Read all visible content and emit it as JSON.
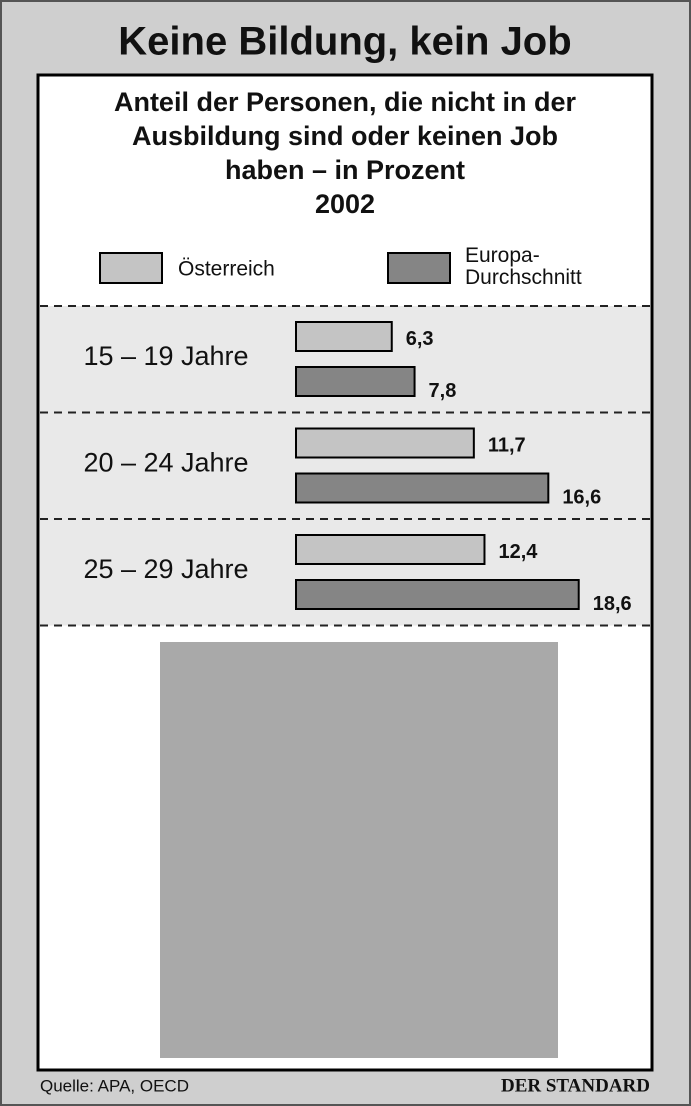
{
  "title": "Keine Bildung, kein Job",
  "chart_data": {
    "type": "bar",
    "subtitle": [
      "Anteil der Personen, die nicht in der",
      "Ausbildung sind oder keinen Job",
      "haben – in Prozent"
    ],
    "year": "2002",
    "categories": [
      "15 – 19 Jahre",
      "20 – 24 Jahre",
      "25 – 29 Jahre"
    ],
    "series": [
      {
        "name": "Österreich",
        "color": "#c4c4c4",
        "values": [
          6.3,
          11.7,
          12.4
        ],
        "value_labels": [
          "6,3",
          "11,7",
          "12,4"
        ]
      },
      {
        "name": "Europa-Durchschnitt",
        "color": "#858585",
        "values": [
          7.8,
          16.6,
          18.6
        ],
        "value_labels": [
          "7,8",
          "16,6",
          "18,6"
        ]
      }
    ]
  },
  "footer": {
    "source": "Quelle: APA, OECD",
    "publisher": "DER STANDARD"
  }
}
